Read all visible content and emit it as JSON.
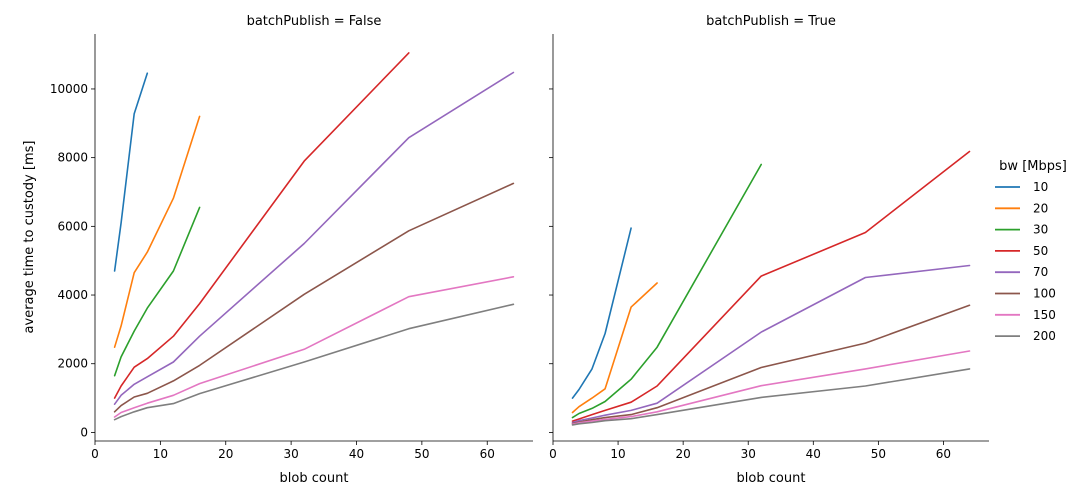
{
  "chart_data": [
    {
      "type": "line",
      "title": "batchPublish = False",
      "xlabel": "blob count",
      "ylabel": "average time to custody [ms]",
      "xlim": [
        0,
        67
      ],
      "ylim": [
        -250,
        11600
      ],
      "xticks": [
        0,
        10,
        20,
        30,
        40,
        50,
        60
      ],
      "yticks": [
        0,
        2000,
        4000,
        6000,
        8000,
        10000
      ],
      "series": [
        {
          "name": "10",
          "color": "#1f77b4",
          "x": [
            3,
            4,
            6,
            8
          ],
          "y": [
            4700,
            6100,
            9280,
            10460
          ]
        },
        {
          "name": "20",
          "color": "#ff7f0e",
          "x": [
            3,
            4,
            6,
            8,
            12,
            16
          ],
          "y": [
            2480,
            3100,
            4650,
            5250,
            6820,
            9200
          ]
        },
        {
          "name": "30",
          "color": "#2ca02c",
          "x": [
            3,
            4,
            6,
            8,
            12,
            16
          ],
          "y": [
            1650,
            2200,
            2950,
            3620,
            4700,
            6550
          ]
        },
        {
          "name": "50",
          "color": "#d62728",
          "x": [
            3,
            4,
            6,
            8,
            12,
            16,
            32,
            48
          ],
          "y": [
            1000,
            1350,
            1900,
            2150,
            2800,
            3750,
            7900,
            11050
          ]
        },
        {
          "name": "70",
          "color": "#9467bd",
          "x": [
            3,
            4,
            6,
            8,
            12,
            16,
            32,
            48,
            64
          ],
          "y": [
            820,
            1080,
            1400,
            1620,
            2050,
            2800,
            5500,
            8580,
            10480
          ]
        },
        {
          "name": "100",
          "color": "#8c564b",
          "x": [
            3,
            4,
            6,
            8,
            12,
            16,
            32,
            48,
            64
          ],
          "y": [
            600,
            780,
            1030,
            1140,
            1500,
            1950,
            4020,
            5870,
            7250
          ]
        },
        {
          "name": "150",
          "color": "#e377c2",
          "x": [
            3,
            4,
            6,
            8,
            12,
            16,
            32,
            48,
            64
          ],
          "y": [
            450,
            580,
            720,
            850,
            1080,
            1420,
            2420,
            3950,
            4530
          ]
        },
        {
          "name": "200",
          "color": "#7f7f7f",
          "x": [
            3,
            4,
            6,
            8,
            12,
            16,
            32,
            48,
            64
          ],
          "y": [
            370,
            460,
            600,
            720,
            840,
            1130,
            2050,
            3020,
            3730
          ]
        }
      ]
    },
    {
      "type": "line",
      "title": "batchPublish = True",
      "xlabel": "blob count",
      "ylabel": "",
      "xlim": [
        0,
        67
      ],
      "ylim": [
        -250,
        11600
      ],
      "xticks": [
        0,
        10,
        20,
        30,
        40,
        50,
        60
      ],
      "yticks": [
        0,
        2000,
        4000,
        6000,
        8000,
        10000
      ],
      "series": [
        {
          "name": "10",
          "color": "#1f77b4",
          "x": [
            3,
            4,
            6,
            8,
            12
          ],
          "y": [
            1000,
            1250,
            1850,
            2880,
            5950
          ]
        },
        {
          "name": "20",
          "color": "#ff7f0e",
          "x": [
            3,
            4,
            6,
            8,
            12,
            16
          ],
          "y": [
            580,
            750,
            1000,
            1270,
            3650,
            4350
          ]
        },
        {
          "name": "30",
          "color": "#2ca02c",
          "x": [
            3,
            4,
            6,
            8,
            12,
            16,
            32
          ],
          "y": [
            430,
            550,
            700,
            900,
            1550,
            2480,
            7800
          ]
        },
        {
          "name": "50",
          "color": "#d62728",
          "x": [
            3,
            4,
            6,
            8,
            12,
            16,
            32,
            48,
            64
          ],
          "y": [
            330,
            390,
            520,
            640,
            880,
            1350,
            4550,
            5820,
            8180
          ]
        },
        {
          "name": "70",
          "color": "#9467bd",
          "x": [
            3,
            4,
            6,
            8,
            12,
            16,
            32,
            48,
            64
          ],
          "y": [
            290,
            340,
            420,
            500,
            640,
            850,
            2920,
            4510,
            4860
          ]
        },
        {
          "name": "100",
          "color": "#8c564b",
          "x": [
            3,
            4,
            6,
            8,
            12,
            16,
            32,
            48,
            64
          ],
          "y": [
            260,
            300,
            370,
            430,
            520,
            720,
            1890,
            2600,
            3700
          ]
        },
        {
          "name": "150",
          "color": "#e377c2",
          "x": [
            3,
            4,
            6,
            8,
            12,
            16,
            32,
            48,
            64
          ],
          "y": [
            240,
            280,
            330,
            380,
            460,
            600,
            1360,
            1850,
            2370
          ]
        },
        {
          "name": "200",
          "color": "#7f7f7f",
          "x": [
            3,
            4,
            6,
            8,
            12,
            16,
            32,
            48,
            64
          ],
          "y": [
            220,
            250,
            290,
            340,
            400,
            520,
            1020,
            1350,
            1850
          ]
        }
      ]
    }
  ],
  "legend": {
    "title": "bw [Mbps]",
    "placement": "right",
    "entries": [
      {
        "label": "10",
        "color": "#1f77b4"
      },
      {
        "label": "20",
        "color": "#ff7f0e"
      },
      {
        "label": "30",
        "color": "#2ca02c"
      },
      {
        "label": "50",
        "color": "#d62728"
      },
      {
        "label": "70",
        "color": "#9467bd"
      },
      {
        "label": "100",
        "color": "#8c564b"
      },
      {
        "label": "150",
        "color": "#e377c2"
      },
      {
        "label": "200",
        "color": "#7f7f7f"
      }
    ]
  }
}
